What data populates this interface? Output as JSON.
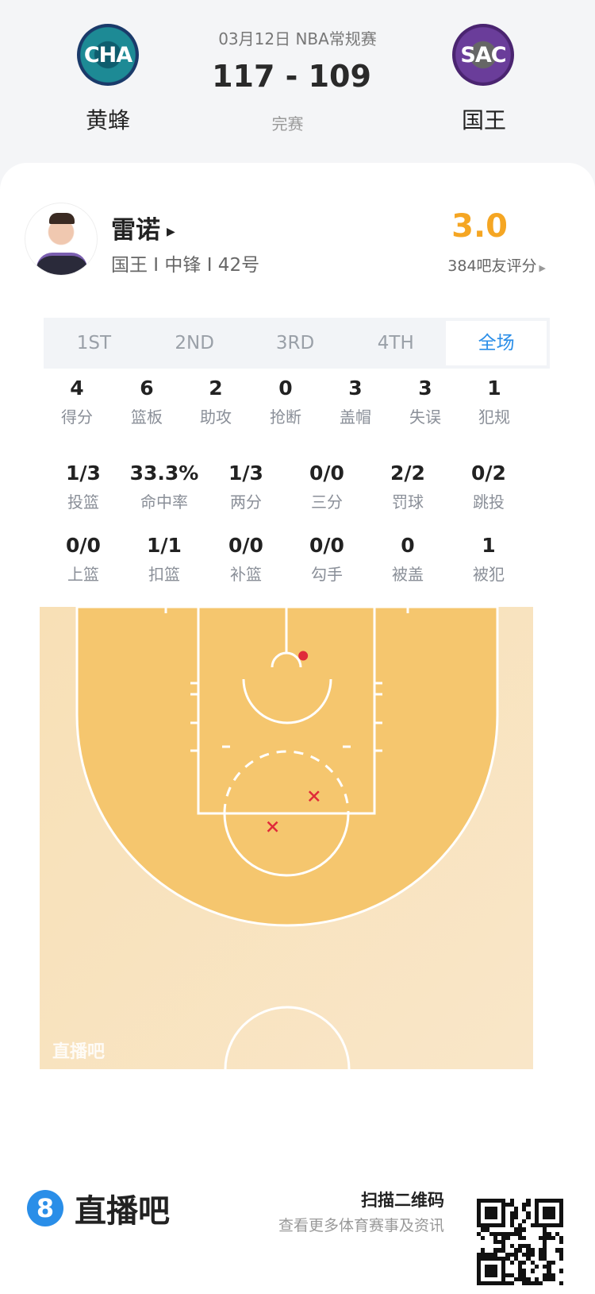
{
  "header": {
    "date_league": "03月12日 NBA常规赛",
    "score": "117 - 109",
    "status": "完赛",
    "home": {
      "abbr": "CHA",
      "name": "黄蜂",
      "color": "#1d7f8c"
    },
    "away": {
      "abbr": "SAC",
      "name": "国王",
      "color": "#5a2d82"
    }
  },
  "player": {
    "name": "雷诺",
    "info": "国王 I 中锋 I 42号",
    "rating": "3.0",
    "rating_count": "384吧友评分",
    "rating_color": "#f5a623"
  },
  "tabs": [
    {
      "label": "1ST"
    },
    {
      "label": "2ND"
    },
    {
      "label": "3RD"
    },
    {
      "label": "4TH"
    },
    {
      "label": "全场",
      "active": true
    }
  ],
  "stats_row1": [
    {
      "v": "4",
      "l": "得分"
    },
    {
      "v": "6",
      "l": "篮板"
    },
    {
      "v": "2",
      "l": "助攻"
    },
    {
      "v": "0",
      "l": "抢断"
    },
    {
      "v": "3",
      "l": "盖帽"
    },
    {
      "v": "3",
      "l": "失误"
    },
    {
      "v": "1",
      "l": "犯规"
    }
  ],
  "stats_row2": [
    {
      "v": "1/3",
      "l": "投篮"
    },
    {
      "v": "33.3%",
      "l": "命中率"
    },
    {
      "v": "1/3",
      "l": "两分"
    },
    {
      "v": "0/0",
      "l": "三分"
    },
    {
      "v": "2/2",
      "l": "罚球"
    },
    {
      "v": "0/2",
      "l": "跳投"
    }
  ],
  "stats_row3": [
    {
      "v": "0/0",
      "l": "上篮"
    },
    {
      "v": "1/1",
      "l": "扣篮"
    },
    {
      "v": "0/0",
      "l": "补篮"
    },
    {
      "v": "0/0",
      "l": "勾手"
    },
    {
      "v": "0",
      "l": "被盖"
    },
    {
      "v": "1",
      "l": "被犯"
    }
  ],
  "shot_chart": {
    "watermark": "直播吧",
    "shots_ft_from_basket": [
      {
        "x": 1.7,
        "y": -1,
        "result": "made"
      },
      {
        "x": 2.8,
        "y": 13.2,
        "result": "missed"
      },
      {
        "x": -1.4,
        "y": 16.3,
        "result": "missed"
      }
    ],
    "made_color": "#e02a3a",
    "missed_color": "#e02a3a"
  },
  "footer": {
    "brand": "直播吧",
    "brand_badge": "8",
    "qr_title": "扫描二维码",
    "qr_sub": "查看更多体育赛事及资讯"
  }
}
